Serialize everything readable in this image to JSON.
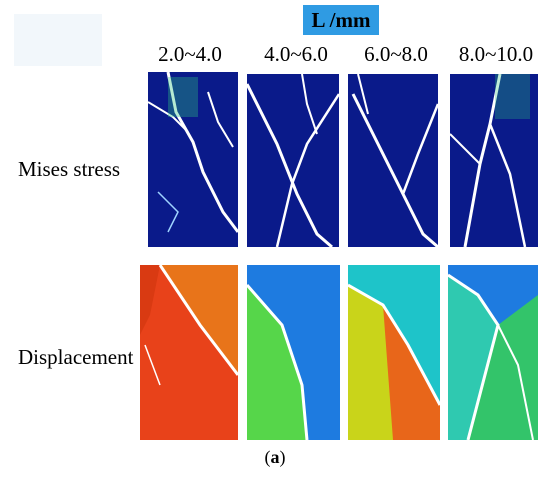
{
  "header": {
    "label": "L /mm"
  },
  "columns": [
    {
      "label": "2.0~4.0"
    },
    {
      "label": "4.0~6.0"
    },
    {
      "label": "6.0~8.0"
    },
    {
      "label": "8.0~10.0"
    }
  ],
  "rows": [
    {
      "label": "Mises stress"
    },
    {
      "label": "Displacement"
    }
  ],
  "caption": {
    "open": "(",
    "letter": "a",
    "close": ")"
  },
  "colors": {
    "stress_background": "#0a1a8a",
    "stress_highlight": "#2ec27e",
    "displacement_high": "#e8421a",
    "displacement_mid": "#7ed321",
    "displacement_low": "#1e7be0",
    "header_box": "#2f9be3"
  }
}
